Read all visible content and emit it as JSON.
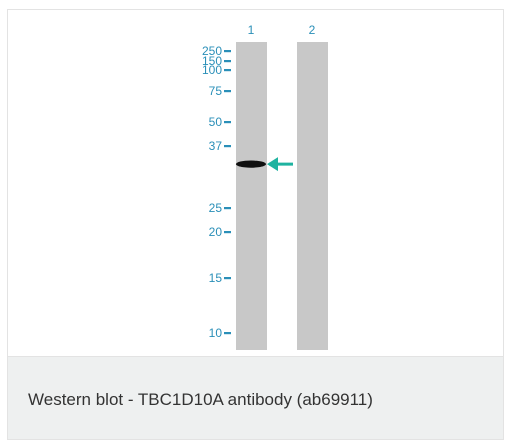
{
  "lanes": [
    {
      "label": "1"
    },
    {
      "label": "2"
    }
  ],
  "markers": [
    {
      "label": "250",
      "kda": 250
    },
    {
      "label": "150",
      "kda": 150
    },
    {
      "label": "100",
      "kda": 100
    },
    {
      "label": "75",
      "kda": 75
    },
    {
      "label": "50",
      "kda": 50
    },
    {
      "label": "37",
      "kda": 37
    },
    {
      "label": "25",
      "kda": 25
    },
    {
      "label": "20",
      "kda": 20
    },
    {
      "label": "15",
      "kda": 15
    },
    {
      "label": "10",
      "kda": 10
    }
  ],
  "band": {
    "lane": 1,
    "kda": 33
  },
  "colors": {
    "marker_text": "#2a8fb8",
    "arrow": "#1fb3a0",
    "lane": "#c8c8c8",
    "band": "#101010"
  },
  "caption": "Western blot - TBC1D10A antibody (ab69911)"
}
